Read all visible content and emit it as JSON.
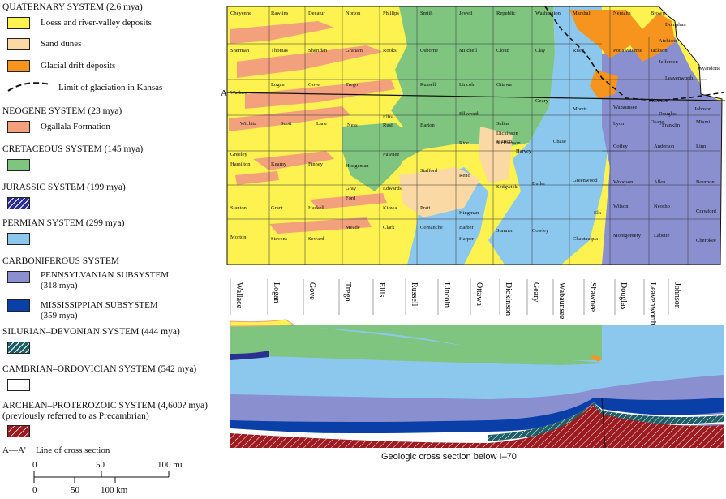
{
  "legend": {
    "quaternary": {
      "title": "QUATERNARY SYSTEM (2.6 mya)",
      "items": [
        {
          "label": "Loess and river-valley deposits",
          "color": "#fdf250"
        },
        {
          "label": "Sand dunes",
          "color": "#fbd9a4"
        },
        {
          "label": "Glacial drift deposits",
          "color": "#f7941d"
        }
      ],
      "glaciation_label": "Limit of glaciation in Kansas"
    },
    "neogene": {
      "title": "NEOGENE SYSTEM (23 mya)",
      "item": "Ogallala Formation",
      "color": "#f3a07c"
    },
    "cretaceous": {
      "title": "CRETACEOUS SYSTEM (145 mya)",
      "color": "#7fc47f"
    },
    "jurassic": {
      "title": "JURASSIC SYSTEM (199 mya)",
      "color": "#2b2f8f"
    },
    "permian": {
      "title": "PERMIAN SYSTEM (299 mya)",
      "color": "#8cc8ee"
    },
    "carboniferous": {
      "title": "CARBONIFEROUS SYSTEM",
      "pennsylvanian": {
        "label": "PENNSYLVANIAN SUBSYSTEM",
        "age": "(318 mya)",
        "color": "#8a8fcf"
      },
      "mississippian": {
        "label": "MISSISSIPPIAN SUBSYSTEM",
        "age": "(359 mya)",
        "color": "#0a3fa8"
      }
    },
    "silurian": {
      "title": "SILURIAN–DEVONIAN SYSTEM (444 mya)",
      "color": "#1e5e66"
    },
    "cambrian": {
      "title": "CAMBRIAN–ORDOVICIAN SYSTEM (542 mya)",
      "color": "#ffffff"
    },
    "archean": {
      "title": "ARCHEAN–PROTEROZOIC SYSTEM (4,600? mya)",
      "note": "(previously referred to as Precambrian)",
      "color": "#9b1b20"
    },
    "cross_section_key": {
      "symbol": "A—A'",
      "label": "Line of cross section"
    },
    "scale_mi": {
      "ticks": [
        "0",
        "50",
        "100 mi"
      ]
    },
    "scale_km": {
      "ticks": [
        "0",
        "50",
        "100 km"
      ]
    }
  },
  "map": {
    "line_label": "A",
    "counties": [
      "Cheyenne",
      "Rawlins",
      "Decatur",
      "Norton",
      "Phillips",
      "Smith",
      "Jewell",
      "Republic",
      "Washington",
      "Marshall",
      "Nemaha",
      "Brown",
      "Doniphan",
      "Sherman",
      "Thomas",
      "Sheridan",
      "Graham",
      "Rooks",
      "Osborne",
      "Mitchell",
      "Cloud",
      "Clay",
      "Riley",
      "Pottawatomie",
      "Jackson",
      "Atchison",
      "Logan",
      "Gove",
      "Trego",
      "Lincoln",
      "Ottawa",
      "Jefferson",
      "Leavenworth",
      "Wyandotte",
      "Wallace",
      "Ellis",
      "Russell",
      "Ellsworth",
      "Saline",
      "Geary",
      "Morris",
      "Wabaunsee",
      "Shawnee",
      "Douglas",
      "Johnson",
      "Wichita",
      "Scott",
      "Lane",
      "Ness",
      "Rush",
      "Barton",
      "Dickinson",
      "Osage",
      "Franklin",
      "Miami",
      "Lyon",
      "Marion",
      "Chase",
      "Greeley",
      "Hamilton",
      "Kearny",
      "Finney",
      "Hodgeman",
      "Pawnee",
      "Rice",
      "McPherson",
      "Harvey",
      "Coffey",
      "Anderson",
      "Linn",
      "Stafford",
      "Reno",
      "Butler",
      "Greenwood",
      "Woodson",
      "Allen",
      "Bourbon",
      "Gray",
      "Ford",
      "Edwards",
      "Sedgwick",
      "Kiowa",
      "Pratt",
      "Kingman",
      "Wilson",
      "Neosho",
      "Crawford",
      "Elk",
      "Stanton",
      "Grant",
      "Haskell",
      "Meade",
      "Clark",
      "Comanche",
      "Barber",
      "Harper",
      "Sumner",
      "Cowley",
      "Chautauqua",
      "Montgomery",
      "Labette",
      "Cherokee",
      "Morton",
      "Stevens",
      "Seward"
    ]
  },
  "cross_section": {
    "counties": [
      "Wallace",
      "Logan",
      "Gove",
      "Trego",
      "Ellis",
      "Russell",
      "Lincoln",
      "Ottawa",
      "Dickinson",
      "Geary",
      "Wabaunsee",
      "Shawnee",
      "Douglas",
      "Leavenworth",
      "Johnson"
    ],
    "caption": "Geologic cross section below I–70"
  }
}
